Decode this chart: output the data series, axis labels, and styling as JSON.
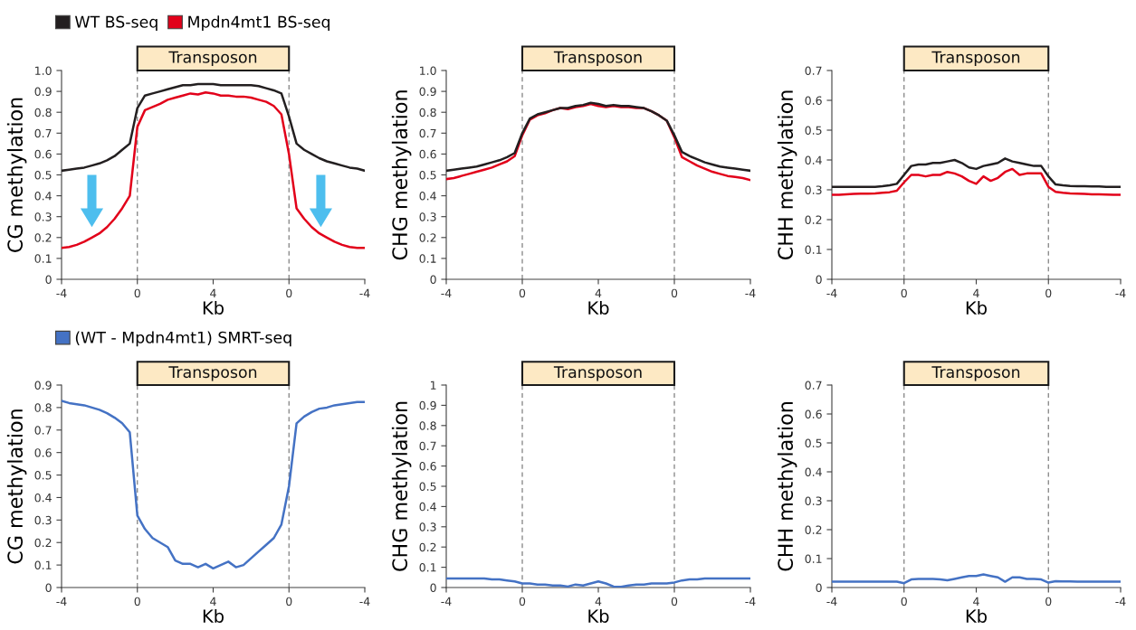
{
  "chart_data": [
    {
      "type": "line",
      "xlabel": "Kb",
      "ylabel": "CG methylation",
      "legend": "top left",
      "annotations": [
        "Transposon"
      ],
      "ylim": [
        0,
        1
      ],
      "yticks": [
        {
          "value": 0,
          "label": "0"
        },
        {
          "value": 0.1,
          "label": "0.1"
        },
        {
          "value": 0.2,
          "label": "0.2"
        },
        {
          "value": 0.3,
          "label": "0.3"
        },
        {
          "value": 0.4,
          "label": "0.4"
        },
        {
          "value": 0.5,
          "label": "0.5"
        },
        {
          "value": 0.6,
          "label": "0.6"
        },
        {
          "value": 0.7,
          "label": "0.7"
        },
        {
          "value": 0.8,
          "label": "0.8"
        },
        {
          "value": 0.9,
          "label": "0.9"
        },
        {
          "value": 1,
          "label": "1.0"
        }
      ],
      "categories": [
        "-4",
        null,
        null,
        null,
        null,
        null,
        null,
        null,
        null,
        null,
        "0",
        null,
        null,
        null,
        null,
        null,
        null,
        null,
        null,
        null,
        "4",
        null,
        null,
        null,
        null,
        null,
        null,
        null,
        null,
        null,
        "0",
        null,
        null,
        null,
        null,
        null,
        null,
        null,
        null,
        null,
        "-4"
      ],
      "series": [
        {
          "name": "WT BS-seq",
          "color": "#231f20",
          "values": [
            0.52,
            0.525,
            0.53,
            0.535,
            0.545,
            0.555,
            0.57,
            0.59,
            0.62,
            0.65,
            0.82,
            0.88,
            0.89,
            0.9,
            0.91,
            0.92,
            0.93,
            0.93,
            0.935,
            0.935,
            0.935,
            0.93,
            0.93,
            0.93,
            0.93,
            0.93,
            0.925,
            0.915,
            0.905,
            0.89,
            0.78,
            0.65,
            0.62,
            0.6,
            0.58,
            0.565,
            0.555,
            0.545,
            0.535,
            0.53,
            0.52
          ]
        },
        {
          "name": "Mpdn4mt1 BS-seq",
          "color": "#e2001a",
          "values": [
            0.15,
            0.155,
            0.165,
            0.18,
            0.2,
            0.22,
            0.25,
            0.29,
            0.34,
            0.4,
            0.73,
            0.81,
            0.825,
            0.84,
            0.86,
            0.87,
            0.88,
            0.89,
            0.885,
            0.895,
            0.89,
            0.88,
            0.88,
            0.875,
            0.875,
            0.87,
            0.86,
            0.85,
            0.83,
            0.79,
            0.6,
            0.34,
            0.29,
            0.25,
            0.22,
            0.2,
            0.18,
            0.165,
            0.155,
            0.15,
            0.15
          ]
        }
      ]
    },
    {
      "type": "line",
      "xlabel": "Kb",
      "ylabel": "CHG methylation",
      "annotations": [
        "Transposon"
      ],
      "ylim": [
        0,
        1
      ],
      "yticks": [
        {
          "value": 0,
          "label": "0"
        },
        {
          "value": 0.1,
          "label": "0.1"
        },
        {
          "value": 0.2,
          "label": "0.2"
        },
        {
          "value": 0.3,
          "label": "0.3"
        },
        {
          "value": 0.4,
          "label": "0.4"
        },
        {
          "value": 0.5,
          "label": "0.5"
        },
        {
          "value": 0.6,
          "label": "0.6"
        },
        {
          "value": 0.7,
          "label": "0.7"
        },
        {
          "value": 0.8,
          "label": "0.8"
        },
        {
          "value": 0.9,
          "label": "0.9"
        },
        {
          "value": 1,
          "label": "1.0"
        }
      ],
      "categories": [
        "-4",
        null,
        null,
        null,
        null,
        null,
        null,
        null,
        null,
        null,
        "0",
        null,
        null,
        null,
        null,
        null,
        null,
        null,
        null,
        null,
        "4",
        null,
        null,
        null,
        null,
        null,
        null,
        null,
        null,
        null,
        "0",
        null,
        null,
        null,
        null,
        null,
        null,
        null,
        null,
        null,
        "-4"
      ],
      "series": [
        {
          "color": "#e2001a",
          "values": [
            0.48,
            0.485,
            0.495,
            0.505,
            0.515,
            0.525,
            0.535,
            0.55,
            0.565,
            0.59,
            0.69,
            0.765,
            0.785,
            0.795,
            0.81,
            0.82,
            0.815,
            0.825,
            0.83,
            0.84,
            0.83,
            0.825,
            0.83,
            0.825,
            0.825,
            0.82,
            0.82,
            0.805,
            0.785,
            0.76,
            0.68,
            0.585,
            0.565,
            0.545,
            0.53,
            0.515,
            0.505,
            0.495,
            0.49,
            0.485,
            0.475
          ]
        },
        {
          "color": "#231f20",
          "values": [
            0.52,
            0.525,
            0.53,
            0.535,
            0.54,
            0.55,
            0.56,
            0.57,
            0.585,
            0.605,
            0.7,
            0.77,
            0.79,
            0.8,
            0.81,
            0.82,
            0.82,
            0.83,
            0.835,
            0.845,
            0.84,
            0.83,
            0.835,
            0.83,
            0.83,
            0.825,
            0.82,
            0.805,
            0.785,
            0.76,
            0.69,
            0.61,
            0.59,
            0.575,
            0.56,
            0.55,
            0.54,
            0.535,
            0.53,
            0.525,
            0.52
          ]
        }
      ]
    },
    {
      "type": "line",
      "xlabel": "Kb",
      "ylabel": "CHH methylation",
      "annotations": [
        "Transposon"
      ],
      "ylim": [
        0,
        0.7
      ],
      "yticks": [
        {
          "value": 0,
          "label": "0"
        },
        {
          "value": 0.1,
          "label": "0.1"
        },
        {
          "value": 0.2,
          "label": "0.2"
        },
        {
          "value": 0.3,
          "label": "0.3"
        },
        {
          "value": 0.4,
          "label": "0.4"
        },
        {
          "value": 0.5,
          "label": "0.5"
        },
        {
          "value": 0.6,
          "label": "0.6"
        },
        {
          "value": 0.7,
          "label": "0.7"
        }
      ],
      "categories": [
        "-4",
        null,
        null,
        null,
        null,
        null,
        null,
        null,
        null,
        null,
        "0",
        null,
        null,
        null,
        null,
        null,
        null,
        null,
        null,
        null,
        "4",
        null,
        null,
        null,
        null,
        null,
        null,
        null,
        null,
        null,
        "0",
        null,
        null,
        null,
        null,
        null,
        null,
        null,
        null,
        null,
        "-4"
      ],
      "series": [
        {
          "color": "#231f20",
          "values": [
            0.31,
            0.31,
            0.31,
            0.31,
            0.31,
            0.31,
            0.31,
            0.312,
            0.315,
            0.32,
            0.35,
            0.38,
            0.385,
            0.385,
            0.39,
            0.39,
            0.395,
            0.4,
            0.39,
            0.375,
            0.37,
            0.38,
            0.385,
            0.39,
            0.405,
            0.395,
            0.39,
            0.385,
            0.38,
            0.38,
            0.345,
            0.318,
            0.315,
            0.313,
            0.312,
            0.312,
            0.311,
            0.311,
            0.31,
            0.31,
            0.31
          ]
        },
        {
          "color": "#e2001a",
          "values": [
            0.283,
            0.283,
            0.285,
            0.286,
            0.287,
            0.287,
            0.288,
            0.29,
            0.292,
            0.297,
            0.325,
            0.35,
            0.35,
            0.345,
            0.35,
            0.35,
            0.36,
            0.355,
            0.345,
            0.33,
            0.32,
            0.345,
            0.33,
            0.34,
            0.36,
            0.37,
            0.35,
            0.355,
            0.355,
            0.355,
            0.31,
            0.293,
            0.29,
            0.288,
            0.287,
            0.286,
            0.285,
            0.285,
            0.284,
            0.283,
            0.283
          ]
        }
      ]
    },
    {
      "type": "line",
      "xlabel": "Kb",
      "ylabel": "CG methylation",
      "legend": "top left",
      "annotations": [
        "Transposon"
      ],
      "ylim": [
        0,
        0.9
      ],
      "yticks": [
        {
          "value": 0,
          "label": "0"
        },
        {
          "value": 0.1,
          "label": "0.1"
        },
        {
          "value": 0.2,
          "label": "0.2"
        },
        {
          "value": 0.3,
          "label": "0.3"
        },
        {
          "value": 0.4,
          "label": "0.4"
        },
        {
          "value": 0.5,
          "label": "0.5"
        },
        {
          "value": 0.6,
          "label": "0.6"
        },
        {
          "value": 0.7,
          "label": "0.7"
        },
        {
          "value": 0.8,
          "label": "0.8"
        },
        {
          "value": 0.9,
          "label": "0.9"
        }
      ],
      "categories": [
        "-4",
        null,
        null,
        null,
        null,
        null,
        null,
        null,
        null,
        null,
        "0",
        null,
        null,
        null,
        null,
        null,
        null,
        null,
        null,
        null,
        "4",
        null,
        null,
        null,
        null,
        null,
        null,
        null,
        null,
        null,
        "0",
        null,
        null,
        null,
        null,
        null,
        null,
        null,
        null,
        null,
        "-4"
      ],
      "series": [
        {
          "name": "(WT - Mpdn4mt1) SMRT-seq",
          "color": "#4472c4",
          "values": [
            0.83,
            0.82,
            0.815,
            0.81,
            0.8,
            0.79,
            0.775,
            0.755,
            0.73,
            0.69,
            0.32,
            0.26,
            0.22,
            0.2,
            0.18,
            0.12,
            0.105,
            0.105,
            0.09,
            0.105,
            0.085,
            0.1,
            0.115,
            0.09,
            0.1,
            0.13,
            0.16,
            0.19,
            0.22,
            0.28,
            0.45,
            0.73,
            0.76,
            0.78,
            0.795,
            0.8,
            0.81,
            0.815,
            0.82,
            0.825,
            0.825
          ]
        }
      ]
    },
    {
      "type": "line",
      "xlabel": "Kb",
      "ylabel": "CHG methylation",
      "annotations": [
        "Transposon"
      ],
      "ylim": [
        0,
        1
      ],
      "yticks": [
        0,
        0.1,
        0.2,
        0.3,
        0.4,
        0.5,
        0.6,
        0.7,
        0.8,
        0.9,
        1
      ],
      "categories": [
        "-4",
        null,
        null,
        null,
        null,
        null,
        null,
        null,
        null,
        null,
        "0",
        null,
        null,
        null,
        null,
        null,
        null,
        null,
        null,
        null,
        "4",
        null,
        null,
        null,
        null,
        null,
        null,
        null,
        null,
        null,
        "0",
        null,
        null,
        null,
        null,
        null,
        null,
        null,
        null,
        null,
        "-4"
      ],
      "series": [
        {
          "color": "#4472c4",
          "values": [
            0.045,
            0.045,
            0.045,
            0.045,
            0.045,
            0.045,
            0.04,
            0.04,
            0.035,
            0.03,
            0.02,
            0.02,
            0.015,
            0.015,
            0.01,
            0.01,
            0.005,
            0.015,
            0.01,
            0.02,
            0.03,
            0.02,
            0.005,
            0.003,
            0.01,
            0.015,
            0.015,
            0.02,
            0.02,
            0.02,
            0.025,
            0.035,
            0.04,
            0.04,
            0.045,
            0.045,
            0.045,
            0.045,
            0.045,
            0.045,
            0.045
          ]
        }
      ]
    },
    {
      "type": "line",
      "xlabel": "Kb",
      "ylabel": "CHH methylation",
      "annotations": [
        "Transposon"
      ],
      "ylim": [
        0,
        0.7
      ],
      "yticks": [
        {
          "value": 0,
          "label": "0"
        },
        {
          "value": 0.1,
          "label": "0.1"
        },
        {
          "value": 0.2,
          "label": "0.2"
        },
        {
          "value": 0.3,
          "label": "0.3"
        },
        {
          "value": 0.4,
          "label": "0.4"
        },
        {
          "value": 0.5,
          "label": "0.5"
        },
        {
          "value": 0.6,
          "label": "0.6"
        },
        {
          "value": 0.7,
          "label": "0.7"
        }
      ],
      "categories": [
        "-4",
        null,
        null,
        null,
        null,
        null,
        null,
        null,
        null,
        null,
        "0",
        null,
        null,
        null,
        null,
        null,
        null,
        null,
        null,
        null,
        "4",
        null,
        null,
        null,
        null,
        null,
        null,
        null,
        null,
        null,
        "0",
        null,
        null,
        null,
        null,
        null,
        null,
        null,
        null,
        null,
        "-4"
      ],
      "series": [
        {
          "color": "#4472c4",
          "values": [
            0.02,
            0.02,
            0.02,
            0.02,
            0.02,
            0.02,
            0.02,
            0.02,
            0.02,
            0.02,
            0.015,
            0.028,
            0.03,
            0.03,
            0.03,
            0.028,
            0.025,
            0.03,
            0.035,
            0.04,
            0.04,
            0.045,
            0.04,
            0.035,
            0.02,
            0.035,
            0.035,
            0.03,
            0.03,
            0.028,
            0.017,
            0.022,
            0.021,
            0.021,
            0.02,
            0.02,
            0.02,
            0.02,
            0.02,
            0.02,
            0.02
          ]
        }
      ]
    }
  ]
}
